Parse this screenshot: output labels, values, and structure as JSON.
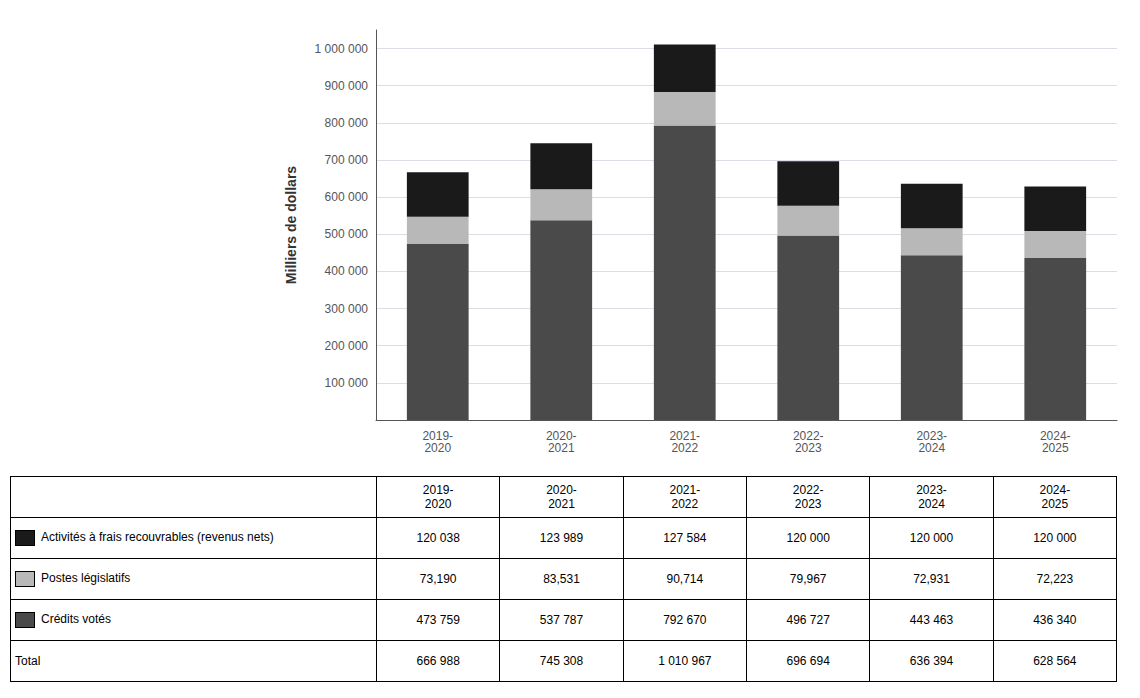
{
  "chart_data": {
    "type": "bar",
    "stacked": true,
    "grid": true,
    "ylabel": "Milliers de dollars",
    "categories": [
      "2019-\n2020",
      "2020-\n2021",
      "2021-\n2022",
      "2022-\n2023",
      "2023-\n2024",
      "2024-\n2025"
    ],
    "series": [
      {
        "name": "Crédits votés",
        "color": "#4a4a4a",
        "values": [
          473759,
          537787,
          792670,
          496727,
          443463,
          436340
        ]
      },
      {
        "name": "Postes législatifs",
        "color": "#b8b8b8",
        "values": [
          73190,
          83531,
          90714,
          79967,
          72931,
          72223
        ]
      },
      {
        "name": "Activités à frais recouvrables (revenus nets)",
        "color": "#1a1a1a",
        "values": [
          120038,
          123989,
          127584,
          120000,
          120000,
          120000
        ]
      }
    ],
    "ylim": [
      0,
      1050000
    ],
    "yticks": [
      {
        "value": 0,
        "label": ""
      },
      {
        "value": 100000,
        "label": "100 000"
      },
      {
        "value": 200000,
        "label": "200 000"
      },
      {
        "value": 300000,
        "label": "300 000"
      },
      {
        "value": 400000,
        "label": "400 000"
      },
      {
        "value": 500000,
        "label": "500 000"
      },
      {
        "value": 600000,
        "label": "600 000"
      },
      {
        "value": 700000,
        "label": "700 000"
      },
      {
        "value": 800000,
        "label": "800 000"
      },
      {
        "value": 900000,
        "label": "900 000"
      },
      {
        "value": 1000000,
        "label": "1 000 000"
      }
    ],
    "table": {
      "rows": [
        {
          "label": "Activités à frais recouvrables (revenus nets)",
          "cells": [
            "120 038",
            "123 989",
            "127 584",
            "120 000",
            "120 000",
            "120 000"
          ]
        },
        {
          "label": "Postes législatifs",
          "cells": [
            "73,190",
            "83,531",
            "90,714",
            "79,967",
            "72,931",
            "72,223"
          ]
        },
        {
          "label": "Crédits votés",
          "cells": [
            "473 759",
            "537 787",
            "792 670",
            "496 727",
            "443 463",
            "436 340"
          ]
        },
        {
          "label": "Total",
          "cells": [
            "666 988",
            "745 308",
            "1 010 967",
            "696 694",
            "636 394",
            "628 564"
          ]
        }
      ]
    }
  }
}
